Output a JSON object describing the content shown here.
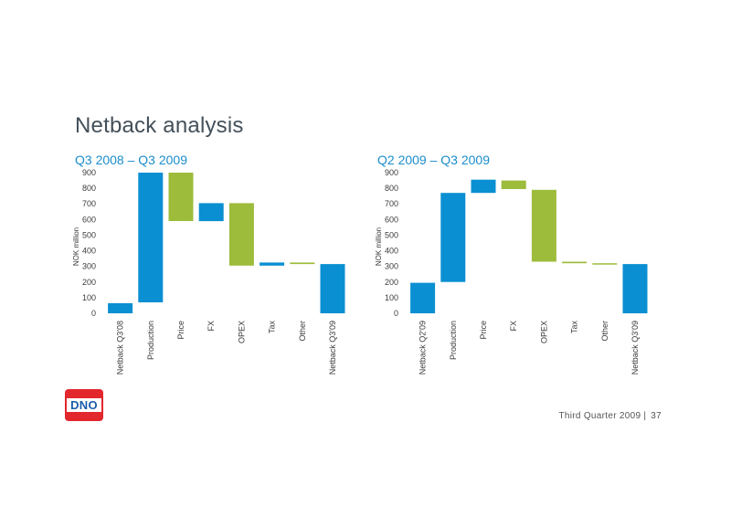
{
  "page": {
    "title": "Netback analysis",
    "logo_text": "DNO",
    "footer_text": "Third Quarter 2009",
    "footer_separator": "|",
    "page_number": "37"
  },
  "colors": {
    "blue": "#0a8fd2",
    "green": "#9dbc3c",
    "title": "#44505a",
    "subtitle": "#1b8dcc",
    "logo_red": "#e2272d",
    "logo_blue": "#1a5da8"
  },
  "chart_data": [
    {
      "type": "bar",
      "subtype": "waterfall",
      "title": "Q3 2008 – Q3 2009",
      "ylabel": "NOK million",
      "ylim": [
        0,
        900
      ],
      "yticks": [
        "0",
        "100",
        "200",
        "300",
        "400",
        "500",
        "600",
        "700",
        "800",
        "900"
      ],
      "categories": [
        "Netback Q3'08",
        "Production",
        "Price",
        "FX",
        "OPEX",
        "Tax",
        "Other",
        "Netback Q3'09"
      ],
      "bars": [
        {
          "bottom": 0,
          "top": 65,
          "color": "blue"
        },
        {
          "bottom": 70,
          "top": 900,
          "color": "blue"
        },
        {
          "bottom": 590,
          "top": 900,
          "color": "green"
        },
        {
          "bottom": 590,
          "top": 705,
          "color": "blue"
        },
        {
          "bottom": 305,
          "top": 705,
          "color": "green"
        },
        {
          "bottom": 305,
          "top": 325,
          "color": "blue"
        },
        {
          "bottom": 315,
          "top": 325,
          "color": "green"
        },
        {
          "bottom": 0,
          "top": 315,
          "color": "blue"
        }
      ]
    },
    {
      "type": "bar",
      "subtype": "waterfall",
      "title": "Q2 2009 – Q3 2009",
      "ylabel": "NOK million",
      "ylim": [
        0,
        900
      ],
      "yticks": [
        "0",
        "100",
        "200",
        "300",
        "400",
        "500",
        "600",
        "700",
        "800",
        "900"
      ],
      "categories": [
        "Netback Q2'09",
        "Production",
        "Price",
        "FX",
        "OPEX",
        "Tax",
        "Other",
        "Netback Q3'09"
      ],
      "bars": [
        {
          "bottom": 0,
          "top": 195,
          "color": "blue"
        },
        {
          "bottom": 200,
          "top": 770,
          "color": "blue"
        },
        {
          "bottom": 770,
          "top": 855,
          "color": "blue"
        },
        {
          "bottom": 795,
          "top": 850,
          "color": "green"
        },
        {
          "bottom": 330,
          "top": 790,
          "color": "green"
        },
        {
          "bottom": 320,
          "top": 330,
          "color": "green"
        },
        {
          "bottom": 315,
          "top": 320,
          "color": "green"
        },
        {
          "bottom": 0,
          "top": 315,
          "color": "blue"
        }
      ]
    }
  ]
}
